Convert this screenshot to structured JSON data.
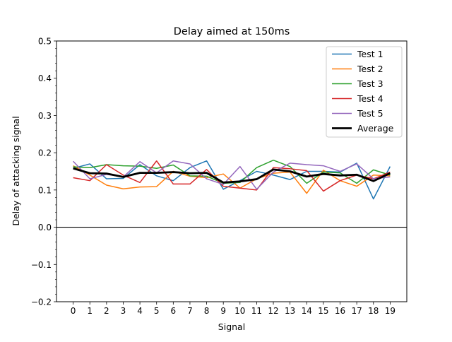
{
  "chart_data": {
    "type": "line",
    "title": "Delay aimed at 150ms",
    "xlabel": "Signal",
    "ylabel": "Delay of attacking signal",
    "x": [
      0,
      1,
      2,
      3,
      4,
      5,
      6,
      7,
      8,
      9,
      10,
      11,
      12,
      13,
      14,
      15,
      16,
      17,
      18,
      19
    ],
    "xlim": [
      -1,
      20
    ],
    "ylim": [
      -0.2,
      0.5
    ],
    "yticks": [
      -0.2,
      -0.1,
      0.0,
      0.1,
      0.2,
      0.3,
      0.4,
      0.5
    ],
    "ytick_labels": [
      "−0.2",
      "−0.1",
      "0.0",
      "0.1",
      "0.2",
      "0.3",
      "0.4",
      "0.5"
    ],
    "y_minor_step": 0.02,
    "hline": 0.0,
    "grid": false,
    "legend_position": "top-right",
    "series": [
      {
        "name": "Test 1",
        "color": "#1f77b4",
        "width": 1.5,
        "values": [
          0.158,
          0.17,
          0.13,
          0.131,
          0.168,
          0.138,
          0.125,
          0.16,
          0.178,
          0.102,
          0.125,
          0.15,
          0.14,
          0.128,
          0.15,
          0.15,
          0.148,
          0.172,
          0.076,
          0.163
        ]
      },
      {
        "name": "Test 2",
        "color": "#ff7f0e",
        "width": 1.5,
        "values": [
          0.165,
          0.14,
          0.113,
          0.103,
          0.108,
          0.109,
          0.15,
          0.137,
          0.133,
          0.143,
          0.105,
          0.13,
          0.145,
          0.148,
          0.091,
          0.153,
          0.125,
          0.11,
          0.14,
          0.138
        ]
      },
      {
        "name": "Test 3",
        "color": "#2ca02c",
        "width": 1.5,
        "values": [
          0.162,
          0.16,
          0.168,
          0.165,
          0.164,
          0.158,
          0.167,
          0.138,
          0.137,
          0.118,
          0.12,
          0.16,
          0.18,
          0.163,
          0.118,
          0.148,
          0.146,
          0.118,
          0.154,
          0.14
        ]
      },
      {
        "name": "Test 4",
        "color": "#d62728",
        "width": 1.5,
        "values": [
          0.133,
          0.125,
          0.168,
          0.14,
          0.12,
          0.178,
          0.116,
          0.116,
          0.155,
          0.11,
          0.105,
          0.1,
          0.16,
          0.157,
          0.152,
          0.097,
          0.125,
          0.14,
          0.13,
          0.148
        ]
      },
      {
        "name": "Test 5",
        "color": "#9467bd",
        "width": 1.5,
        "values": [
          0.177,
          0.13,
          0.142,
          0.135,
          0.176,
          0.146,
          0.178,
          0.17,
          0.13,
          0.115,
          0.163,
          0.102,
          0.148,
          0.172,
          0.168,
          0.165,
          0.15,
          0.17,
          0.13,
          0.135
        ]
      },
      {
        "name": "Average",
        "color": "#000000",
        "width": 2.8,
        "values": [
          0.158,
          0.145,
          0.144,
          0.135,
          0.146,
          0.146,
          0.148,
          0.145,
          0.146,
          0.12,
          0.123,
          0.129,
          0.155,
          0.15,
          0.136,
          0.143,
          0.139,
          0.141,
          0.124,
          0.145
        ]
      }
    ]
  }
}
